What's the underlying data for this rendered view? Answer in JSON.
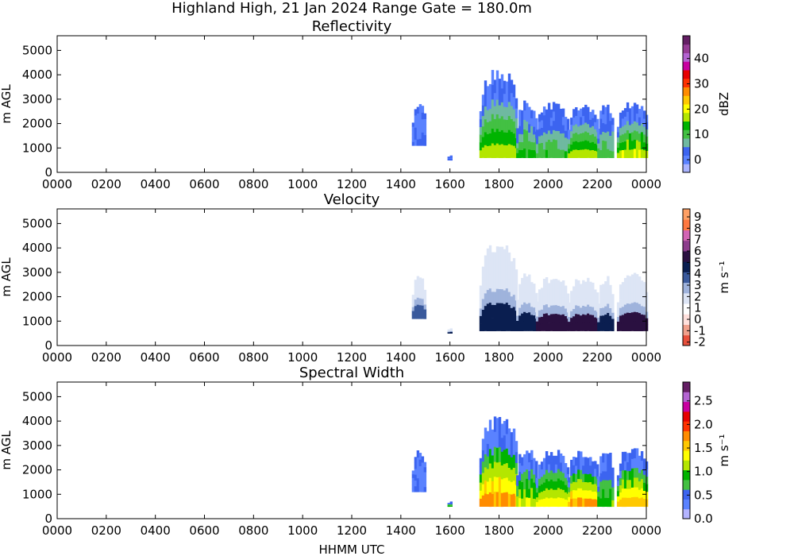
{
  "figure": {
    "suptitle": "Highland High, 21 Jan 2024 Range Gate = 180.0m",
    "xlabel": "HHMM UTC"
  },
  "chart_data": [
    {
      "type": "heatmap",
      "title": "Reflectivity",
      "xlabel": "",
      "ylabel": "m AGL",
      "x_tick_labels": [
        "0000",
        "0200",
        "0400",
        "0600",
        "0800",
        "1000",
        "1200",
        "1400",
        "1600",
        "1800",
        "2000",
        "2200",
        "0000"
      ],
      "xlim": [
        0,
        24
      ],
      "y_tick_labels": [
        "0",
        "1000",
        "2000",
        "3000",
        "4000",
        "5000"
      ],
      "ylim": [
        0,
        5600
      ],
      "colorbar": {
        "label": "dBZ",
        "range": [
          -5,
          49
        ],
        "ticks": [
          0,
          10,
          20,
          30,
          40
        ],
        "tick_labels": [
          "0",
          "10",
          "20",
          "30",
          "40"
        ],
        "colors": [
          "#aab4ff",
          "#5a82ff",
          "#3c64f0",
          "#6fb9a0",
          "#43c043",
          "#00b400",
          "#b4e600",
          "#ffff00",
          "#ffc800",
          "#ff8c00",
          "#ff3200",
          "#e60000",
          "#c800a0",
          "#b464d2",
          "#963c96",
          "#641e64"
        ]
      },
      "echoes": [
        {
          "x_start": 14.45,
          "x_end": 14.95,
          "y_base": 1100,
          "y_top": 2900,
          "core": 0.05
        },
        {
          "x_start": 15.9,
          "x_end": 16.0,
          "y_base": 500,
          "y_top": 800,
          "core": 0.1
        },
        {
          "x_start": 17.2,
          "x_end": 18.7,
          "y_base": 600,
          "y_top": 4300,
          "core": 0.45
        },
        {
          "x_start": 18.7,
          "x_end": 19.5,
          "y_base": 600,
          "y_top": 3000,
          "core": 0.35
        },
        {
          "x_start": 19.5,
          "x_end": 20.8,
          "y_base": 600,
          "y_top": 2900,
          "core": 0.3
        },
        {
          "x_start": 20.8,
          "x_end": 22.0,
          "y_base": 600,
          "y_top": 2850,
          "core": 0.45
        },
        {
          "x_start": 22.0,
          "x_end": 22.6,
          "y_base": 600,
          "y_top": 2900,
          "core": 0.3
        },
        {
          "x_start": 22.8,
          "x_end": 24.0,
          "y_base": 600,
          "y_top": 3000,
          "core": 0.5
        }
      ]
    },
    {
      "type": "heatmap",
      "title": "Velocity",
      "xlabel": "",
      "ylabel": "m AGL",
      "x_tick_labels": [
        "0000",
        "0200",
        "0400",
        "0600",
        "0800",
        "1000",
        "1200",
        "1400",
        "1600",
        "1800",
        "2000",
        "2200",
        "0000"
      ],
      "xlim": [
        0,
        24
      ],
      "y_tick_labels": [
        "0",
        "1000",
        "2000",
        "3000",
        "4000",
        "5000"
      ],
      "ylim": [
        0,
        5600
      ],
      "colorbar": {
        "label": "m s⁻¹",
        "range": [
          -2.3,
          9.7
        ],
        "ticks": [
          -2,
          -1,
          0,
          1,
          2,
          3,
          4,
          5,
          6,
          7,
          8,
          9
        ],
        "tick_labels": [
          "-2",
          "-1",
          "0",
          "1",
          "2",
          "3",
          "4",
          "5",
          "6",
          "7",
          "8",
          "9"
        ],
        "colors": [
          "#e8503c",
          "#f0a08c",
          "#ffe0dc",
          "#ffffff",
          "#dde5f5",
          "#9fb3dc",
          "#3a5a9c",
          "#0a1e50",
          "#2a1040",
          "#8c3c8c",
          "#d264b4",
          "#ff7840",
          "#ffa064"
        ]
      },
      "echoes": [
        {
          "x_start": 14.45,
          "x_end": 14.95,
          "y_base": 1100,
          "y_top": 2900,
          "core": 0.0
        },
        {
          "x_start": 15.9,
          "x_end": 16.0,
          "y_base": 500,
          "y_top": 800,
          "core": 0.6
        },
        {
          "x_start": 17.2,
          "x_end": 18.7,
          "y_base": 600,
          "y_top": 4300,
          "core": 0.6
        },
        {
          "x_start": 18.7,
          "x_end": 19.5,
          "y_base": 600,
          "y_top": 3000,
          "core": 0.5
        },
        {
          "x_start": 19.5,
          "x_end": 20.8,
          "y_base": 600,
          "y_top": 2900,
          "core": 0.8
        },
        {
          "x_start": 20.8,
          "x_end": 22.0,
          "y_base": 600,
          "y_top": 2850,
          "core": 0.8
        },
        {
          "x_start": 22.0,
          "x_end": 22.6,
          "y_base": 600,
          "y_top": 2900,
          "core": 0.5
        },
        {
          "x_start": 22.8,
          "x_end": 24.0,
          "y_base": 600,
          "y_top": 3000,
          "core": 0.9
        }
      ]
    },
    {
      "type": "heatmap",
      "title": "Spectral Width",
      "xlabel": "HHMM UTC",
      "ylabel": "m AGL",
      "x_tick_labels": [
        "0000",
        "0200",
        "0400",
        "0600",
        "0800",
        "1000",
        "1200",
        "1400",
        "1600",
        "1800",
        "2000",
        "2200",
        "0000"
      ],
      "xlim": [
        0,
        24
      ],
      "y_tick_labels": [
        "0",
        "1000",
        "2000",
        "3000",
        "4000",
        "5000"
      ],
      "ylim": [
        0,
        5600
      ],
      "colorbar": {
        "label": "m s⁻¹",
        "range": [
          0.0,
          2.9
        ],
        "ticks": [
          0.0,
          0.5,
          1.0,
          1.5,
          2.0,
          2.5
        ],
        "tick_labels": [
          "0.0",
          "0.5",
          "1.0",
          "1.5",
          "2.0",
          "2.5"
        ],
        "colors": [
          "#b4b4ff",
          "#5a82ff",
          "#3c64f0",
          "#43c043",
          "#00b400",
          "#b4e600",
          "#ffff00",
          "#ffc800",
          "#ff8c00",
          "#ff3200",
          "#e60000",
          "#c800a0",
          "#b464d2",
          "#641e64"
        ]
      },
      "echoes": [
        {
          "x_start": 14.45,
          "x_end": 14.95,
          "y_base": 1100,
          "y_top": 2900,
          "core": 0.05
        },
        {
          "x_start": 15.9,
          "x_end": 16.0,
          "y_base": 500,
          "y_top": 800,
          "core": 0.3
        },
        {
          "x_start": 17.2,
          "x_end": 18.7,
          "y_base": 500,
          "y_top": 4300,
          "core": 0.6
        },
        {
          "x_start": 18.7,
          "x_end": 19.5,
          "y_base": 500,
          "y_top": 3000,
          "core": 0.4
        },
        {
          "x_start": 19.5,
          "x_end": 20.8,
          "y_base": 500,
          "y_top": 2900,
          "core": 0.45
        },
        {
          "x_start": 20.8,
          "x_end": 22.0,
          "y_base": 500,
          "y_top": 2850,
          "core": 0.6
        },
        {
          "x_start": 22.0,
          "x_end": 22.6,
          "y_base": 500,
          "y_top": 2900,
          "core": 0.3
        },
        {
          "x_start": 22.8,
          "x_end": 24.0,
          "y_base": 500,
          "y_top": 3000,
          "core": 0.55
        }
      ]
    }
  ]
}
